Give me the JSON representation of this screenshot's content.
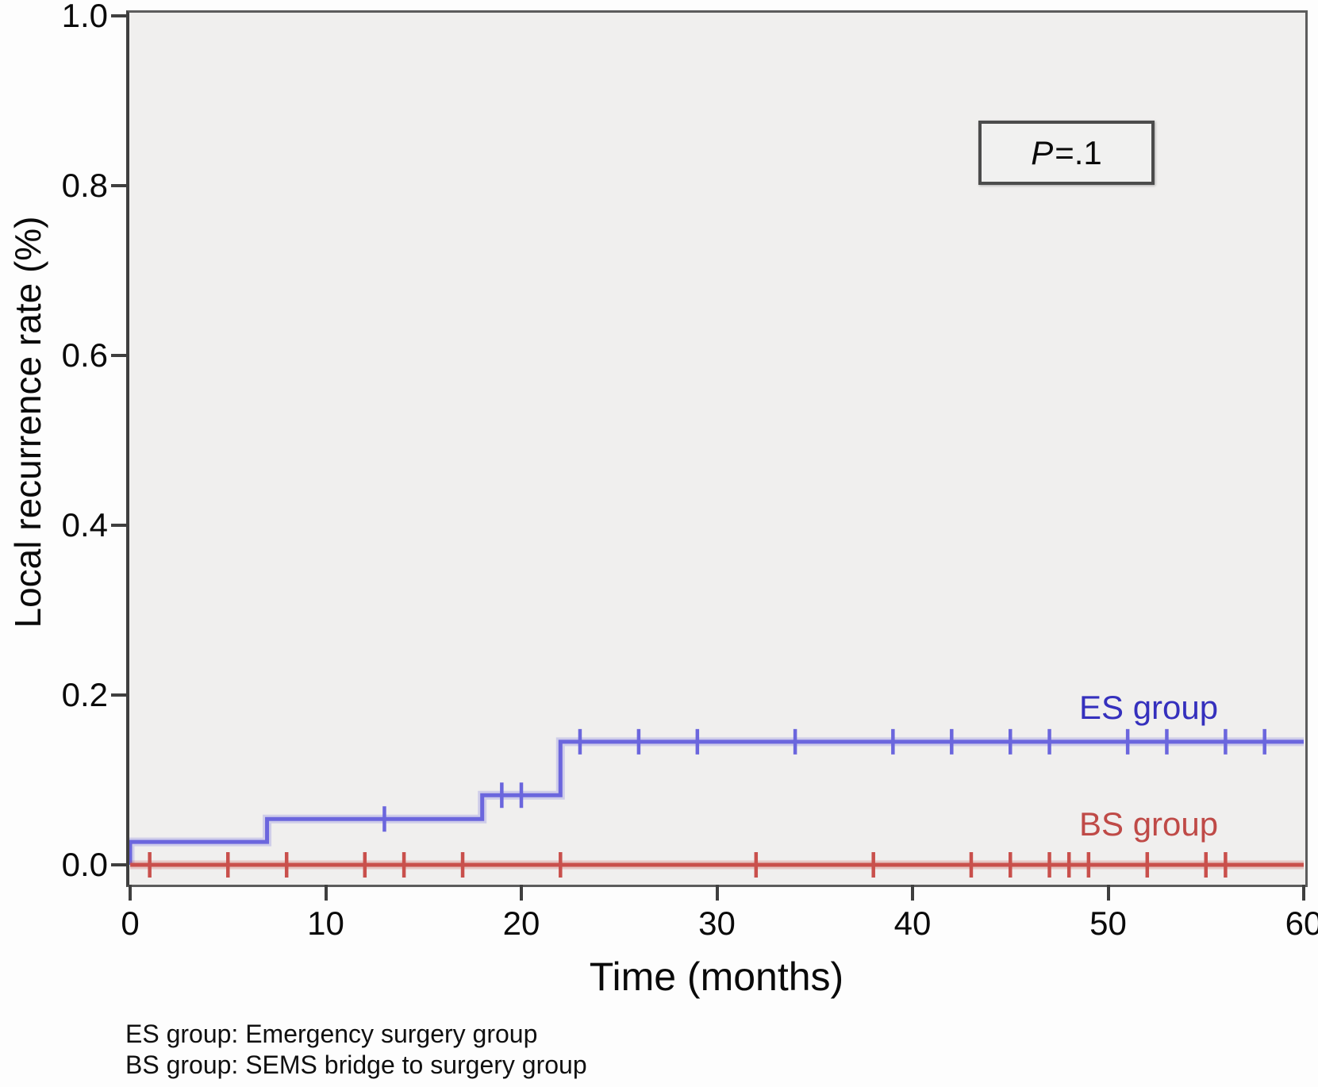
{
  "chart_data": {
    "type": "line",
    "subtype": "kaplan-meier-step",
    "title": "",
    "xlabel": "Time (months)",
    "ylabel": "Local recurrence rate (%)",
    "xlim": [
      0,
      60
    ],
    "ylim": [
      0,
      1.0
    ],
    "x_ticks": [
      0,
      10,
      20,
      30,
      40,
      50,
      60
    ],
    "y_ticks": [
      "0.0",
      "0.2",
      "0.4",
      "0.6",
      "0.8",
      "1.0"
    ],
    "grid": "off",
    "panel_background": "#f0efee",
    "annotations": {
      "p_symbol": "P",
      "p_rest": "=.1",
      "p_value_full": "P=.1"
    },
    "series": [
      {
        "id": "es",
        "name": "ES group",
        "line_color": "#6b66dd",
        "label_color": "#3530bd",
        "step_points": [
          [
            0,
            0
          ],
          [
            0,
            0.027
          ],
          [
            7,
            0.054
          ],
          [
            18,
            0.082
          ],
          [
            22,
            0.145
          ],
          [
            60,
            0.145
          ]
        ],
        "censor_marks": [
          [
            13,
            0.054
          ],
          [
            19,
            0.082
          ],
          [
            20,
            0.082
          ],
          [
            23,
            0.145
          ],
          [
            26,
            0.145
          ],
          [
            29,
            0.145
          ],
          [
            34,
            0.145
          ],
          [
            39,
            0.145
          ],
          [
            42,
            0.145
          ],
          [
            45,
            0.145
          ],
          [
            47,
            0.145
          ],
          [
            51,
            0.145
          ],
          [
            53,
            0.145
          ],
          [
            56,
            0.145
          ],
          [
            58,
            0.145
          ]
        ]
      },
      {
        "id": "bs",
        "name": "BS group",
        "line_color": "#c9504c",
        "label_color": "#bf4a47",
        "step_points": [
          [
            0,
            0
          ],
          [
            60,
            0
          ]
        ],
        "censor_marks": [
          [
            1,
            0
          ],
          [
            5,
            0
          ],
          [
            8,
            0
          ],
          [
            12,
            0
          ],
          [
            14,
            0
          ],
          [
            17,
            0
          ],
          [
            22,
            0
          ],
          [
            32,
            0
          ],
          [
            38,
            0
          ],
          [
            43,
            0
          ],
          [
            45,
            0
          ],
          [
            47,
            0
          ],
          [
            48,
            0
          ],
          [
            49,
            0
          ],
          [
            52,
            0
          ],
          [
            55,
            0
          ],
          [
            56,
            0
          ]
        ]
      }
    ],
    "footnotes": [
      "ES group: Emergency surgery group",
      "BS group: SEMS bridge to surgery group"
    ]
  }
}
